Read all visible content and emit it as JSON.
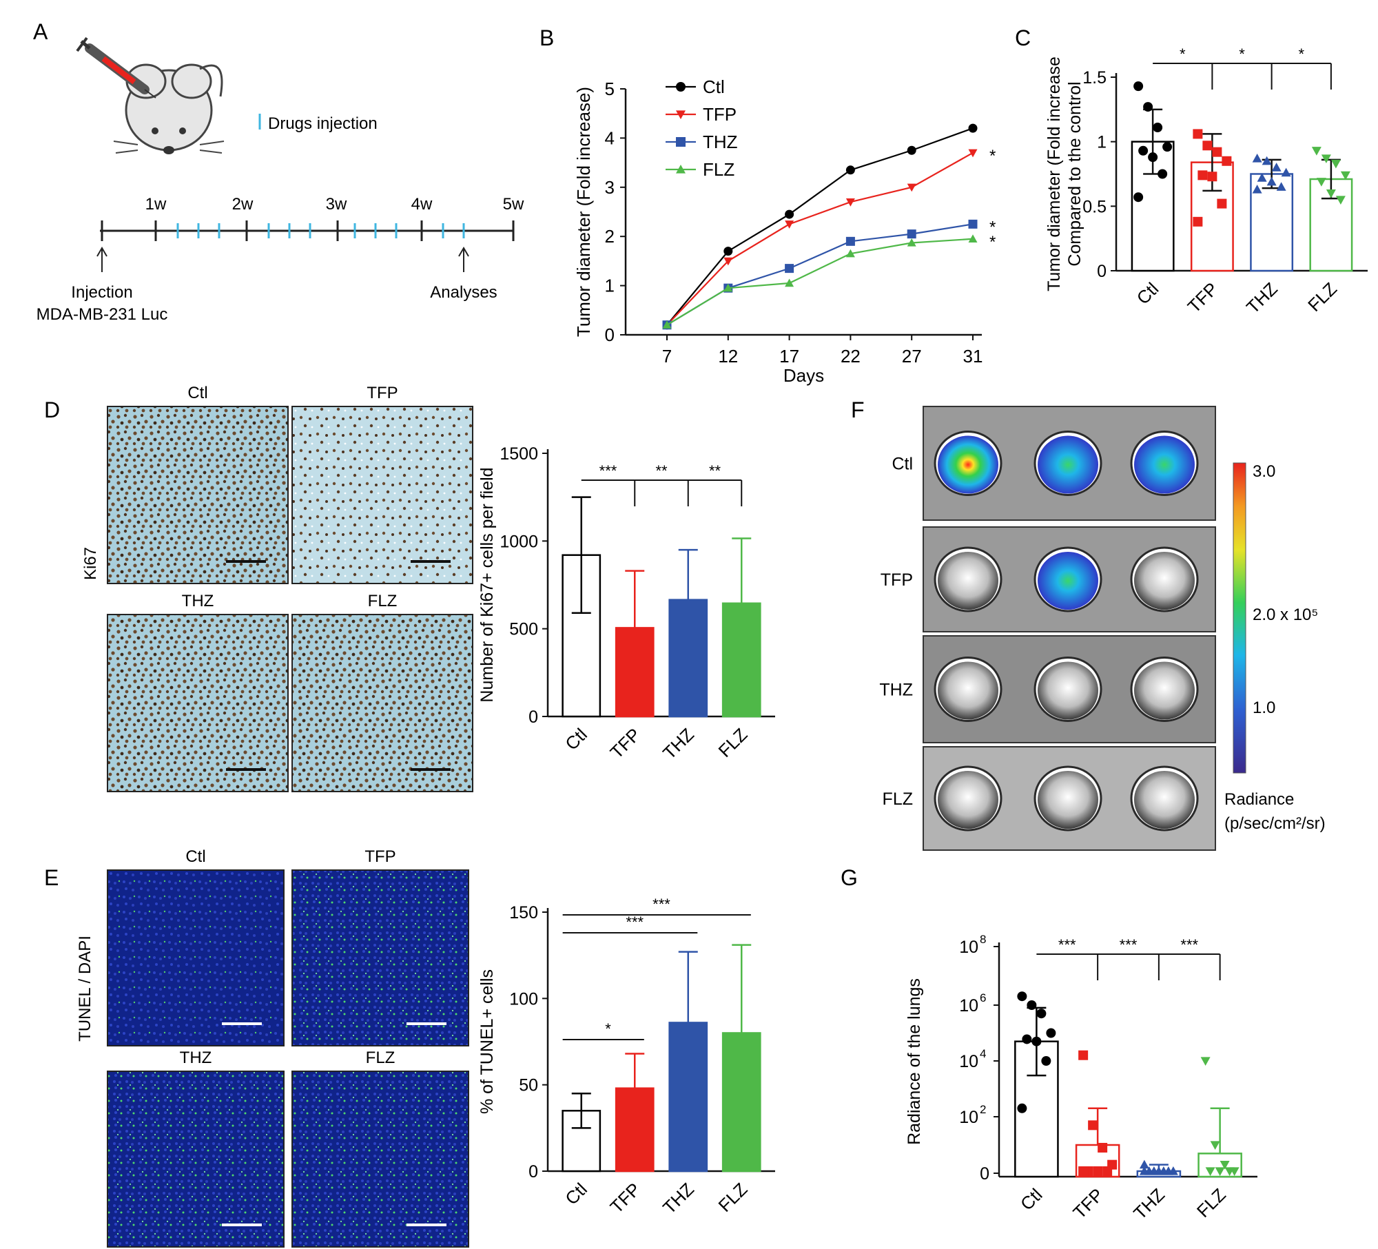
{
  "panels": {
    "A": {
      "letter": "A",
      "legend": "Drugs injection",
      "weeks": [
        "1w",
        "2w",
        "3w",
        "4w",
        "5w"
      ],
      "injection_label_line1": "Injection",
      "injection_label_line2": "MDA-MB-231 Luc",
      "analyses_label": "Analyses",
      "colors": {
        "tick": "#3fb6e0"
      }
    },
    "B": {
      "letter": "B"
    },
    "C": {
      "letter": "C"
    },
    "D": {
      "letter": "D",
      "stain": "Ki67",
      "images": [
        "Ctl",
        "TFP",
        "THZ",
        "FLZ"
      ]
    },
    "E": {
      "letter": "E",
      "stain": "TUNEL / DAPI",
      "images": [
        "Ctl",
        "TFP",
        "THZ",
        "FLZ"
      ]
    },
    "F": {
      "letter": "F",
      "rows": [
        "Ctl",
        "TFP",
        "THZ",
        "FLZ"
      ],
      "colorbar_ticks": [
        "3.0",
        "2.0 x 10⁵",
        "1.0"
      ],
      "colorbar_title_line1": "Radiance",
      "colorbar_title_line2": "(p/sec/cm²/sr)"
    },
    "G": {
      "letter": "G"
    }
  },
  "colors": {
    "Ctl": "#000000",
    "TFP": "#e8231d",
    "THZ": "#2f54a8",
    "FLZ": "#4fb848"
  },
  "chart_data": [
    {
      "id": "B",
      "type": "line",
      "xlabel": "Days",
      "ylabel": "Tumor diameter (Fold increase)",
      "x": [
        7,
        12,
        17,
        22,
        27,
        31
      ],
      "ylim": [
        0,
        5
      ],
      "yticks": [
        0,
        1,
        2,
        3,
        4,
        5
      ],
      "series": [
        {
          "name": "Ctl",
          "values": [
            0.2,
            1.7,
            2.45,
            3.35,
            3.75,
            4.2
          ],
          "marker": "circle",
          "sig": ""
        },
        {
          "name": "TFP",
          "values": [
            0.2,
            1.5,
            2.25,
            2.7,
            3.0,
            3.7
          ],
          "marker": "triangle-down",
          "sig": "*"
        },
        {
          "name": "THZ",
          "values": [
            0.2,
            0.95,
            1.35,
            1.9,
            2.05,
            2.25
          ],
          "marker": "square",
          "sig": "*"
        },
        {
          "name": "FLZ",
          "values": [
            0.2,
            0.95,
            1.05,
            1.65,
            1.87,
            1.95
          ],
          "marker": "triangle-up",
          "sig": "*"
        }
      ]
    },
    {
      "id": "C",
      "type": "bar",
      "ylabel_line1": "Tumor diameter (Fold increase",
      "ylabel_line2": "Compared to the control",
      "categories": [
        "Ctl",
        "TFP",
        "THZ",
        "FLZ"
      ],
      "values": [
        1.0,
        0.84,
        0.75,
        0.71
      ],
      "errors": [
        0.25,
        0.22,
        0.11,
        0.15
      ],
      "points": [
        [
          1.43,
          1.27,
          1.11,
          0.96,
          0.93,
          0.88,
          0.75,
          0.57
        ],
        [
          1.06,
          0.97,
          0.92,
          0.85,
          0.74,
          0.73,
          0.52,
          0.38
        ],
        [
          0.87,
          0.85,
          0.8,
          0.76,
          0.72,
          0.69,
          0.65,
          0.63
        ],
        [
          0.93,
          0.87,
          0.83,
          0.74,
          0.69,
          0.6,
          0.55
        ]
      ],
      "filled": [
        false,
        false,
        false,
        false
      ],
      "ylim": [
        0,
        1.5
      ],
      "yticks": [
        0,
        0.5,
        1,
        1.5
      ],
      "ytick_labels": [
        "0",
        "0.5",
        "1",
        "1.5"
      ],
      "sig": [
        {
          "from": 1,
          "label": "*"
        },
        {
          "from": 2,
          "label": "*"
        },
        {
          "from": 3,
          "label": "*"
        }
      ]
    },
    {
      "id": "D",
      "type": "bar",
      "ylabel": "Number of Ki67+ cells per field",
      "categories": [
        "Ctl",
        "TFP",
        "THZ",
        "FLZ"
      ],
      "values": [
        920,
        505,
        665,
        645
      ],
      "errors": [
        330,
        325,
        285,
        370
      ],
      "filled": [
        false,
        true,
        true,
        true
      ],
      "ylim": [
        0,
        1500
      ],
      "yticks": [
        0,
        500,
        1000,
        1500
      ],
      "ytick_labels": [
        "0",
        "500",
        "1000",
        "1500"
      ],
      "sig": [
        {
          "from": 1,
          "label": "***"
        },
        {
          "from": 2,
          "label": "**"
        },
        {
          "from": 3,
          "label": "**"
        }
      ]
    },
    {
      "id": "E",
      "type": "bar",
      "ylabel": "% of TUNEL+ cells",
      "categories": [
        "Ctl",
        "TFP",
        "THZ",
        "FLZ"
      ],
      "values": [
        35,
        48,
        86,
        80
      ],
      "errors": [
        10,
        20,
        41,
        51
      ],
      "filled": [
        false,
        true,
        true,
        true
      ],
      "ylim": [
        0,
        150
      ],
      "yticks": [
        0,
        50,
        100,
        150
      ],
      "ytick_labels": [
        "0",
        "50",
        "100",
        "150"
      ],
      "sig": [
        {
          "from": 0,
          "to": 1,
          "label": "*"
        },
        {
          "from": 0,
          "to": 2,
          "label": "***"
        },
        {
          "from": 0,
          "to": 3,
          "label": "***"
        }
      ]
    },
    {
      "id": "G",
      "type": "bar",
      "ylabel": "Radiance of  the lungs",
      "scale": "log",
      "categories": [
        "Ctl",
        "TFP",
        "THZ",
        "FLZ"
      ],
      "values": [
        50000,
        10,
        1,
        5
      ],
      "error_top": [
        800000,
        200,
        2,
        200
      ],
      "error_bottom": [
        3000,
        0,
        0,
        0
      ],
      "points": [
        [
          2000000,
          1000000,
          500000,
          100000,
          60000,
          50000,
          10000,
          200
        ],
        [
          16000,
          50,
          8,
          2,
          1,
          1,
          1,
          1
        ],
        [
          2,
          1,
          1,
          1,
          1,
          1,
          1,
          1
        ],
        [
          10000,
          10,
          2,
          1,
          1,
          1,
          1
        ]
      ],
      "filled": [
        false,
        false,
        false,
        false
      ],
      "yticks": [
        0,
        100,
        10000,
        1000000,
        100000000
      ],
      "ytick_labels": [
        "0",
        "10^2",
        "10^4",
        "10^6",
        "10^8"
      ],
      "sig": [
        {
          "from": 1,
          "label": "***"
        },
        {
          "from": 2,
          "label": "***"
        },
        {
          "from": 3,
          "label": "***"
        }
      ]
    }
  ]
}
